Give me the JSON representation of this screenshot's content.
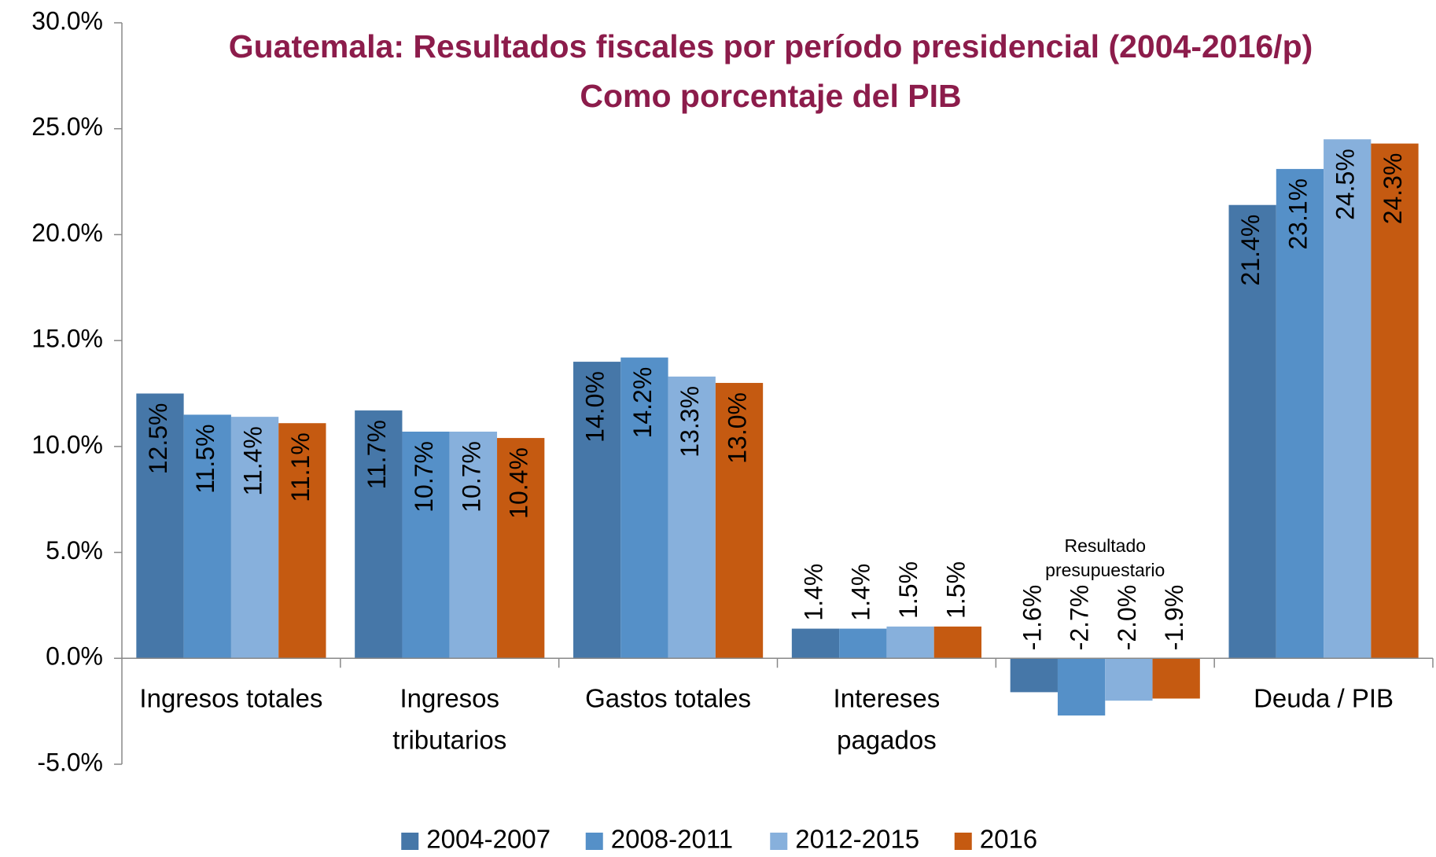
{
  "chart_data": {
    "type": "bar",
    "title": "Guatemala: Resultados fiscales por período presidencial (2004-2016/p)",
    "subtitle": "Como porcentaje del PIB",
    "categories": [
      [
        "Ingresos totales"
      ],
      [
        "Ingresos",
        "tributarios"
      ],
      [
        "Gastos totales"
      ],
      [
        "Intereses",
        "pagados"
      ],
      [
        "Resultado",
        "presupuestario"
      ],
      [
        "Deuda / PIB"
      ]
    ],
    "series": [
      {
        "name": "2004-2007",
        "color": "#4677a8",
        "values": [
          12.5,
          11.7,
          14.0,
          1.4,
          -1.6,
          21.4
        ],
        "value_labels": [
          "12.5%",
          "11.7%",
          "14.0%",
          "1.4%",
          "-1.6%",
          "21.4%"
        ]
      },
      {
        "name": "2008-2011",
        "color": "#5590c8",
        "values": [
          11.5,
          10.7,
          14.2,
          1.4,
          -2.7,
          23.1
        ],
        "value_labels": [
          "11.5%",
          "10.7%",
          "14.2%",
          "1.4%",
          "-2.7%",
          "23.1%"
        ]
      },
      {
        "name": "2012-2015",
        "color": "#87b0dc",
        "values": [
          11.4,
          10.7,
          13.3,
          1.5,
          -2.0,
          24.5
        ],
        "value_labels": [
          "11.4%",
          "10.7%",
          "13.3%",
          "1.5%",
          "-2.0%",
          "24.5%"
        ]
      },
      {
        "name": "2016",
        "color": "#c55a11",
        "values": [
          11.1,
          10.4,
          13.0,
          1.5,
          -1.9,
          24.3
        ],
        "value_labels": [
          "11.1%",
          "10.4%",
          "13.0%",
          "1.5%",
          "-1.9%",
          "24.3%"
        ]
      }
    ],
    "ylim": [
      -5,
      30
    ],
    "yticks": [
      {
        "value": -5,
        "label": "-5.0%"
      },
      {
        "value": 0,
        "label": "0.0%"
      },
      {
        "value": 5,
        "label": "5.0%"
      },
      {
        "value": 10,
        "label": "10.0%"
      },
      {
        "value": 15,
        "label": "15.0%"
      },
      {
        "value": 20,
        "label": "20.0%"
      },
      {
        "value": 25,
        "label": "25.0%"
      },
      {
        "value": 30,
        "label": "30.0%"
      }
    ],
    "legend": "bottom"
  }
}
